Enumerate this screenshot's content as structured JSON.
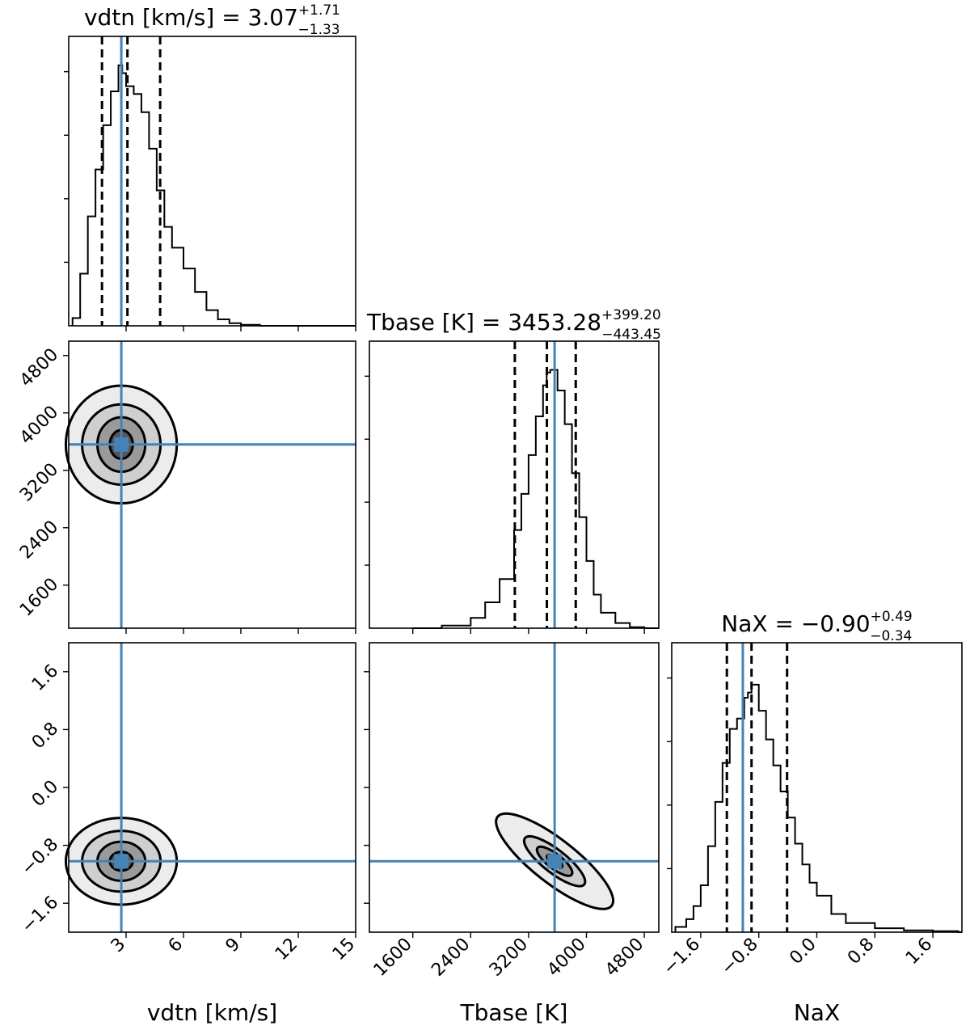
{
  "chart_data": {
    "type": "corner",
    "parameters": [
      {
        "key": "vdtn",
        "label": "vdtn [km/s]",
        "range": [
          0,
          15
        ],
        "ticks": [
          3,
          6,
          9,
          12,
          15
        ],
        "tick_labels": [
          "3",
          "6",
          "9",
          "12",
          "15"
        ]
      },
      {
        "key": "Tbase",
        "label": "Tbase [K]",
        "range": [
          1000,
          5000
        ],
        "ticks": [
          1600,
          2400,
          3200,
          4000,
          4800
        ],
        "tick_labels": [
          "1600",
          "2400",
          "3200",
          "4000",
          "4800"
        ]
      },
      {
        "key": "NaX",
        "label": "NaX",
        "range": [
          -2.0,
          2.0
        ],
        "ticks": [
          -1.6,
          -0.8,
          0.0,
          0.8,
          1.6
        ],
        "tick_labels": [
          "−1.6",
          "−0.8",
          "0.0",
          "0.8",
          "1.6"
        ]
      }
    ],
    "titles": [
      {
        "param": "vdtn",
        "prefix": "vdtn [km/s] = ",
        "median": "3.07",
        "plus": "+1.71",
        "minus": "−1.33"
      },
      {
        "param": "Tbase",
        "prefix": "Tbase [K] = ",
        "median": "3453.28",
        "plus": "+399.20",
        "minus": "−443.45"
      },
      {
        "param": "NaX",
        "prefix": "NaX = ",
        "median": "−0.90",
        "plus": "+0.49",
        "minus": "−0.34"
      }
    ],
    "quantiles": {
      "vdtn": [
        1.74,
        3.07,
        4.78
      ],
      "Tbase": [
        3010,
        3453,
        3852
      ],
      "NaX": [
        -1.24,
        -0.9,
        -0.41
      ]
    },
    "truths": {
      "vdtn": 2.75,
      "Tbase": 3560,
      "NaX": -1.02
    },
    "histograms": {
      "vdtn": {
        "x": [
          0.2,
          0.6,
          1.0,
          1.4,
          1.8,
          2.2,
          2.6,
          2.8,
          3.0,
          3.4,
          3.8,
          4.2,
          4.6,
          5.0,
          5.4,
          6.0,
          6.6,
          7.2,
          7.8,
          8.4,
          9.0,
          10.0
        ],
        "y": [
          0.03,
          0.2,
          0.42,
          0.6,
          0.77,
          0.9,
          1.0,
          0.97,
          0.92,
          0.89,
          0.82,
          0.68,
          0.52,
          0.38,
          0.3,
          0.22,
          0.13,
          0.06,
          0.025,
          0.01,
          0.004,
          0.0
        ]
      },
      "Tbase": {
        "x": [
          1600,
          2000,
          2400,
          2600,
          2800,
          3000,
          3100,
          3200,
          3300,
          3400,
          3450,
          3500,
          3600,
          3700,
          3800,
          3900,
          4000,
          4100,
          4200,
          4400,
          4600,
          4800
        ],
        "y": [
          0.0,
          0.01,
          0.04,
          0.1,
          0.19,
          0.38,
          0.52,
          0.67,
          0.82,
          0.94,
          0.99,
          1.0,
          0.92,
          0.79,
          0.6,
          0.43,
          0.26,
          0.13,
          0.06,
          0.02,
          0.004,
          0.0
        ]
      },
      "NaX": {
        "x": [
          -1.95,
          -1.8,
          -1.7,
          -1.6,
          -1.5,
          -1.4,
          -1.3,
          -1.2,
          -1.1,
          -1.0,
          -0.95,
          -0.9,
          -0.8,
          -0.7,
          -0.6,
          -0.5,
          -0.4,
          -0.3,
          -0.2,
          -0.1,
          0.0,
          0.2,
          0.4,
          0.8,
          1.2,
          1.6,
          1.95
        ],
        "y": [
          0.02,
          0.05,
          0.1,
          0.18,
          0.33,
          0.5,
          0.65,
          0.78,
          0.82,
          0.9,
          0.92,
          0.95,
          0.85,
          0.74,
          0.64,
          0.54,
          0.44,
          0.34,
          0.26,
          0.19,
          0.14,
          0.07,
          0.035,
          0.015,
          0.007,
          0.004,
          0.0
        ]
      }
    },
    "contours": [
      {
        "x_param": "vdtn",
        "y_param": "Tbase",
        "center": [
          2.75,
          3560
        ],
        "levels": [
          {
            "rx": 0.6,
            "ry": 200
          },
          {
            "rx": 1.25,
            "ry": 380
          },
          {
            "rx": 2.05,
            "ry": 560
          },
          {
            "rx": 2.9,
            "ry": 820
          }
        ]
      },
      {
        "x_param": "vdtn",
        "y_param": "NaX",
        "center": [
          2.75,
          -1.02
        ],
        "levels": [
          {
            "rx": 0.6,
            "ry": 0.13
          },
          {
            "rx": 1.25,
            "ry": 0.27
          },
          {
            "rx": 2.05,
            "ry": 0.42
          },
          {
            "rx": 2.9,
            "ry": 0.6
          }
        ]
      },
      {
        "x_param": "Tbase",
        "y_param": "NaX",
        "center": [
          3560,
          -1.02
        ],
        "levels": [
          {
            "rx": 130,
            "ry": 0.05
          },
          {
            "rx": 300,
            "ry": 0.1
          },
          {
            "rx": 520,
            "ry": 0.16
          },
          {
            "rx": 1000,
            "ry": 0.3
          }
        ]
      }
    ]
  },
  "colors": {
    "truth": "#4682b4",
    "ink": "#000000"
  }
}
